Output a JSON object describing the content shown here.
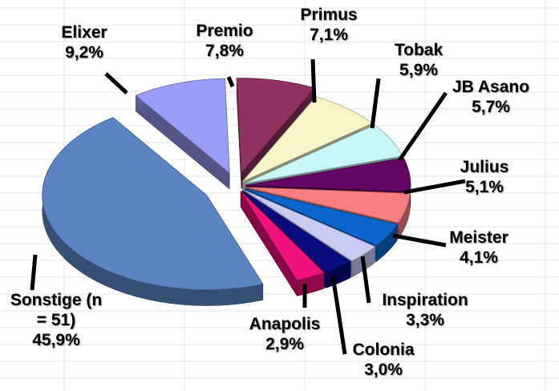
{
  "chart_data": {
    "type": "pie",
    "categories": [
      "Sonstige (n = 51)",
      "Elixer",
      "Premio",
      "Primus",
      "Tobak",
      "JB Asano",
      "Julius",
      "Meister",
      "Inspiration",
      "Colonia",
      "Anapolis"
    ],
    "values": [
      45.9,
      9.2,
      7.8,
      7.1,
      5.9,
      5.7,
      5.1,
      4.1,
      3.3,
      3.0,
      2.9
    ],
    "value_labels": [
      "45,9%",
      "9,2%",
      "7,8%",
      "7,1%",
      "5,9%",
      "5,7%",
      "5,1%",
      "4,1%",
      "3,3%",
      "3,0%",
      "2,9%"
    ],
    "colors": [
      "#5b84c2",
      "#9a9cf5",
      "#8e3360",
      "#f7f5c8",
      "#c8f7f7",
      "#650563",
      "#f77f7f",
      "#0a66cc",
      "#c9cbf5",
      "#0b0b80",
      "#f0127c"
    ]
  }
}
